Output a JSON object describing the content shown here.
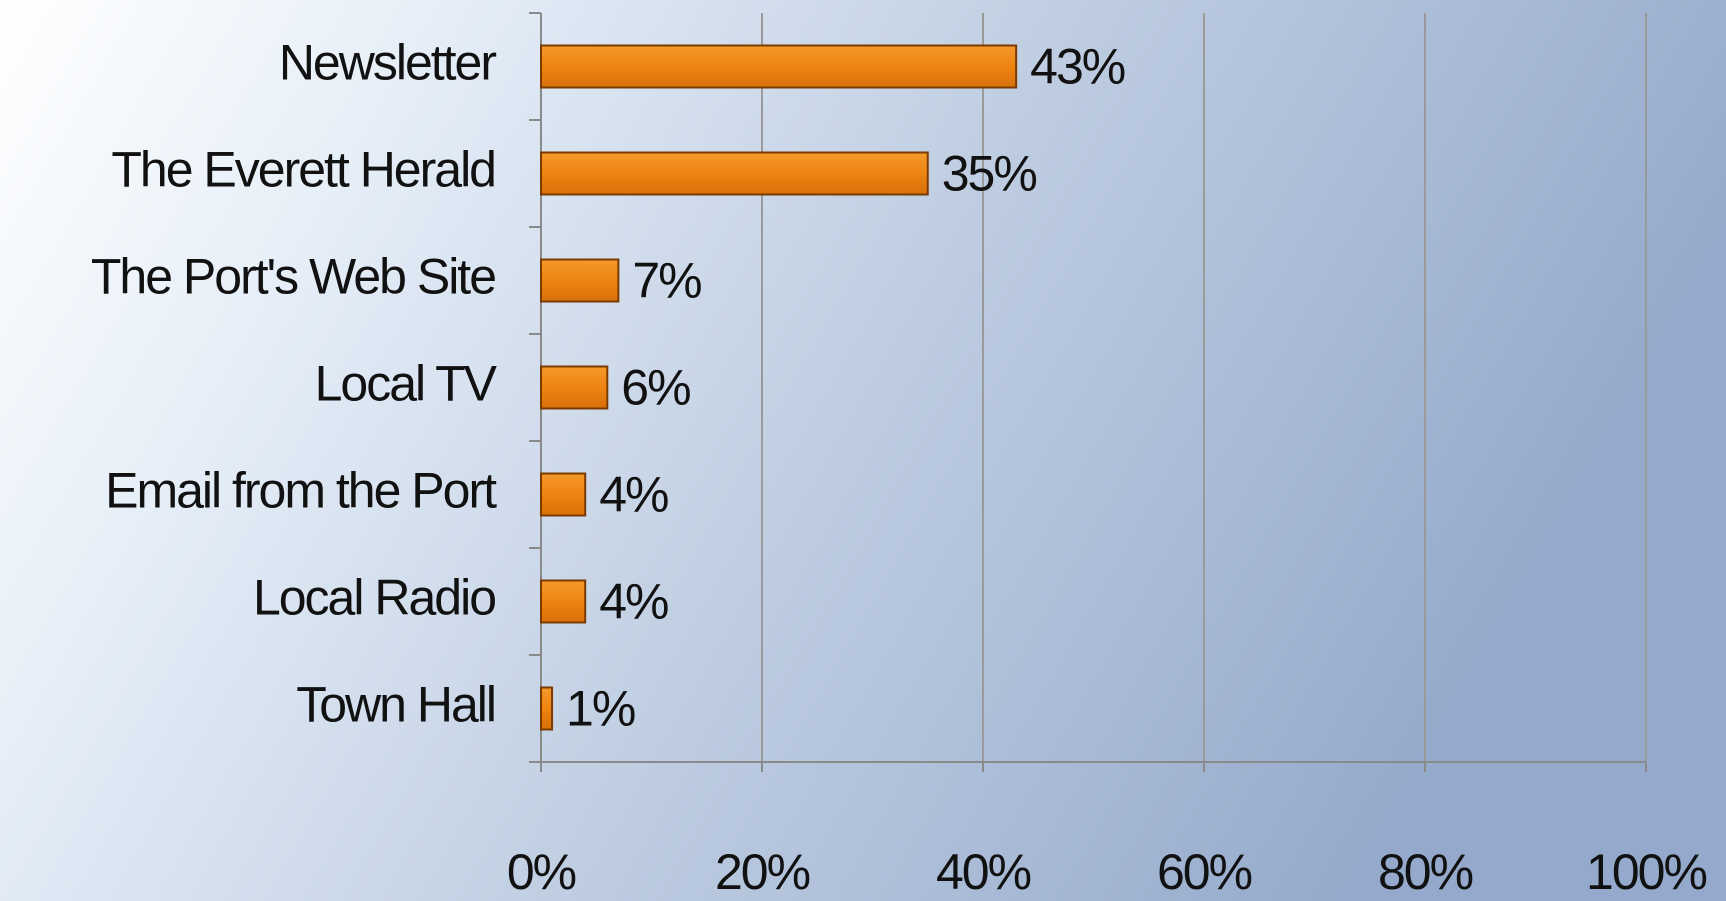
{
  "chart_data": {
    "type": "bar",
    "orientation": "horizontal",
    "categories": [
      "Newsletter",
      "The Everett Herald",
      "The Port's Web Site",
      "Local TV",
      "Email from the Port",
      "Local Radio",
      "Town Hall"
    ],
    "values": [
      43,
      35,
      7,
      6,
      4,
      4,
      1
    ],
    "value_labels": [
      "43%",
      "35%",
      "7%",
      "6%",
      "4%",
      "4%",
      "1%"
    ],
    "color": "#ee8410",
    "xlim": [
      0,
      100
    ],
    "xticks": [
      {
        "value": 0,
        "label": "0%"
      },
      {
        "value": 20,
        "label": "20%"
      },
      {
        "value": 40,
        "label": "40%"
      },
      {
        "value": 60,
        "label": "60%"
      },
      {
        "value": 80,
        "label": "80%"
      },
      {
        "value": 100,
        "label": "100%"
      }
    ],
    "grid": true
  }
}
